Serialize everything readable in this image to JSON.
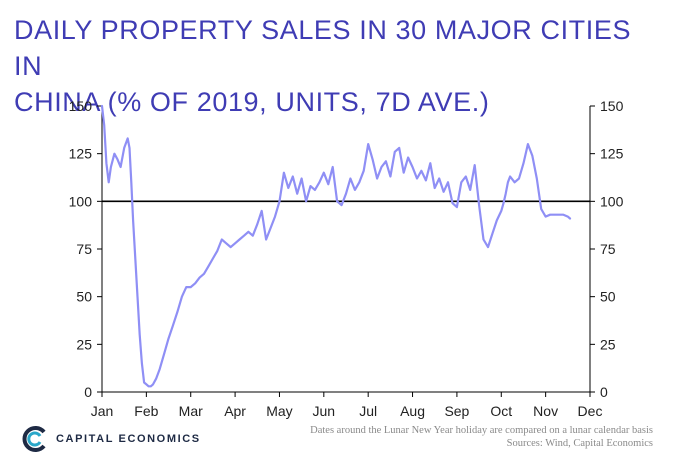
{
  "title": {
    "line1": "DAILY PROPERTY SALES IN 30 MAJOR CITIES IN",
    "line2": "CHINA (% OF 2019, UNITS, 7D AVE.)"
  },
  "footer": {
    "note": "Dates around the Lunar New Year holiday are compared on a lunar calendar basis",
    "sources": "Sources: Wind, Capital Economics",
    "logo_text": "CAPITAL ECONOMICS"
  },
  "colors": {
    "title": "#3f3cb4",
    "series": "#8f8ff5",
    "reference": "#000000",
    "logo_primary": "#1e2a44",
    "logo_accent": "#2aa7c9"
  },
  "chart_data": {
    "type": "line",
    "title": "Daily property sales in 30 major cities in China (% of 2019, units, 7d ave.)",
    "x_tick_labels": [
      "Jan",
      "Feb",
      "Mar",
      "Apr",
      "May",
      "Jun",
      "Jul",
      "Aug",
      "Sep",
      "Oct",
      "Nov",
      "Dec"
    ],
    "y_ticks": [
      0,
      25,
      50,
      75,
      100,
      125,
      150
    ],
    "ylim": [
      0,
      150
    ],
    "xlim": [
      0,
      11
    ],
    "y_axis_labels_both_sides": true,
    "reference_line": 100,
    "series": [
      {
        "name": "Daily property sales (% of 2019)",
        "x": [
          0,
          0.05,
          0.1,
          0.15,
          0.2,
          0.28,
          0.35,
          0.42,
          0.5,
          0.58,
          0.62,
          0.66,
          0.7,
          0.75,
          0.8,
          0.85,
          0.9,
          0.95,
          1.0,
          1.05,
          1.1,
          1.15,
          1.22,
          1.3,
          1.4,
          1.5,
          1.6,
          1.7,
          1.8,
          1.9,
          2.0,
          2.1,
          2.2,
          2.3,
          2.4,
          2.5,
          2.6,
          2.7,
          2.8,
          2.9,
          3.0,
          3.1,
          3.2,
          3.3,
          3.4,
          3.5,
          3.6,
          3.7,
          3.8,
          3.9,
          4.0,
          4.1,
          4.2,
          4.3,
          4.4,
          4.5,
          4.6,
          4.7,
          4.8,
          4.9,
          5.0,
          5.1,
          5.2,
          5.3,
          5.4,
          5.5,
          5.6,
          5.7,
          5.8,
          5.9,
          6.0,
          6.1,
          6.2,
          6.3,
          6.4,
          6.5,
          6.6,
          6.7,
          6.8,
          6.9,
          7.0,
          7.1,
          7.2,
          7.3,
          7.4,
          7.5,
          7.6,
          7.7,
          7.8,
          7.9,
          8.0,
          8.1,
          8.2,
          8.3,
          8.4,
          8.5,
          8.6,
          8.7,
          8.8,
          8.9,
          9.0,
          9.05,
          9.1,
          9.15,
          9.2,
          9.3,
          9.4,
          9.5,
          9.6,
          9.7,
          9.8,
          9.9,
          10.0,
          10.1,
          10.2,
          10.3,
          10.4,
          10.5,
          10.55
        ],
        "values": [
          150,
          140,
          120,
          110,
          118,
          125,
          122,
          118,
          128,
          133,
          128,
          110,
          90,
          70,
          50,
          30,
          15,
          5,
          4,
          3,
          3,
          4,
          7,
          12,
          20,
          28,
          35,
          42,
          50,
          55,
          55,
          57,
          60,
          62,
          66,
          70,
          74,
          80,
          78,
          76,
          78,
          80,
          82,
          84,
          82,
          88,
          95,
          80,
          86,
          92,
          100,
          115,
          107,
          113,
          104,
          112,
          100,
          108,
          106,
          110,
          115,
          109,
          118,
          100,
          98,
          104,
          112,
          106,
          110,
          116,
          130,
          122,
          112,
          118,
          121,
          113,
          126,
          128,
          115,
          123,
          118,
          112,
          116,
          111,
          120,
          107,
          112,
          105,
          110,
          99,
          97,
          110,
          113,
          106,
          119,
          98,
          80,
          76,
          83,
          90,
          95,
          99,
          104,
          110,
          113,
          110,
          112,
          120,
          130,
          124,
          112,
          96,
          92,
          93,
          93,
          93,
          93,
          92,
          91
        ]
      }
    ]
  }
}
